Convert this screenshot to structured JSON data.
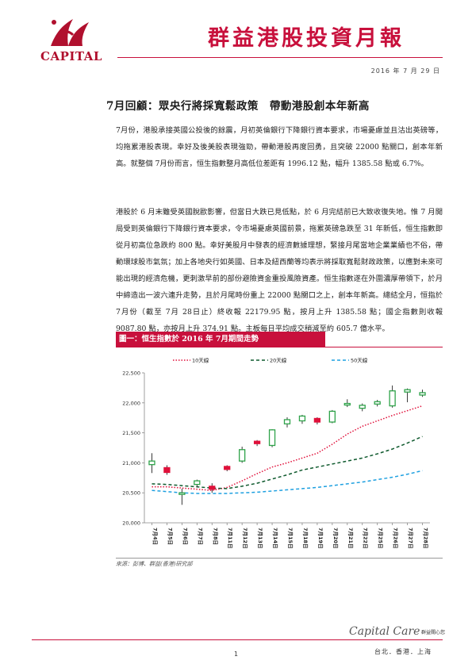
{
  "header": {
    "logo_text": "CAPITAL",
    "report_title": "群益港股投資月報",
    "date": "2016 年 7 月 29 日"
  },
  "article": {
    "headline": "7月回顧：眾央行將採寬鬆政策　帶動港股創本年新高",
    "paragraphs": [
      "7月份，港股承接英國公投後的餘震，月初英倫銀行下降銀行資本要求，市場憂慮並且沽出英磅等，均拖累港股表現。幸好及後美股表現強勁，帶動港股再度回勇，且突破 22000 點關口，創本年新高。就整個 7月份而言，恒生指數整月高低位差距有 1996.12 點，幅升 1385.58 點或 6.7%。",
      "港股於 6 月末雖受英國脫歐影響，但當日大跌已見低點，於 6 月完結前已大致收復失地。惟 7 月開局受到英倫銀行下降銀行資本要求，令市場憂慮英國前景，拖累英磅急跌至 31 年新低，恒生指數即從月初高位急跌約 800 點。幸好美股月中發表的經濟數據理想，緊接月尾當地企業業績也不俗，帶動環球股市氣氛；加上各地央行如英國、日本及紐西蘭等均表示將採取寬鬆財政政策，以應對未來可能出現的經濟危機，更刺激早前的部份避險資金重投風險資產。恒生指數遂在外圍濃厚帶領下，於月中締造出一波六連升走勢，且於月尾時份重上 22000 點關口之上，創本年新高。總結全月，恒指於 7月份（截至 7月 28日止）終收報 22179.95 點，按月上升 1385.58 點；國企指數則收報 9087.80 點，亦按月上升 374.91 點。主板每日平均成交稍減至約 605.7 億水平。"
    ]
  },
  "figure": {
    "title": "圖一：恒生指數於 2016 年 7月期間走勢",
    "source": "來源：彭博、群益(香港)研究部"
  },
  "chart_data": {
    "type": "candlestick",
    "title": "",
    "ylim": [
      20000,
      22500
    ],
    "yticks": [
      20000,
      20500,
      21000,
      21500,
      22000,
      22500
    ],
    "ytick_labels": [
      "20,000",
      "20,500",
      "21,000",
      "21,500",
      "22,000",
      "22,500"
    ],
    "categories": [
      "7月4日",
      "7月5日",
      "7月6日",
      "7月7日",
      "7月8日",
      "7月11日",
      "7月12日",
      "7月13日",
      "7月14日",
      "7月15日",
      "7月18日",
      "7月19日",
      "7月20日",
      "7月21日",
      "7月22日",
      "7月25日",
      "7月26日",
      "7月27日",
      "7月28日"
    ],
    "candles": [
      {
        "open": 20970,
        "high": 21160,
        "low": 20830,
        "close": 21030,
        "up": true
      },
      {
        "open": 20920,
        "high": 20960,
        "low": 20800,
        "close": 20840,
        "up": false
      },
      {
        "open": 20480,
        "high": 20570,
        "low": 20300,
        "close": 20500,
        "up": true
      },
      {
        "open": 20640,
        "high": 20720,
        "low": 20590,
        "close": 20700,
        "up": true
      },
      {
        "open": 20610,
        "high": 20660,
        "low": 20500,
        "close": 20560,
        "up": false
      },
      {
        "open": 20940,
        "high": 20960,
        "low": 20860,
        "close": 20890,
        "up": false
      },
      {
        "open": 21030,
        "high": 21270,
        "low": 21000,
        "close": 21220,
        "up": true
      },
      {
        "open": 21360,
        "high": 21380,
        "low": 21280,
        "close": 21320,
        "up": false
      },
      {
        "open": 21290,
        "high": 21560,
        "low": 21260,
        "close": 21550,
        "up": true
      },
      {
        "open": 21650,
        "high": 21760,
        "low": 21590,
        "close": 21720,
        "up": true
      },
      {
        "open": 21700,
        "high": 21800,
        "low": 21650,
        "close": 21780,
        "up": true
      },
      {
        "open": 21740,
        "high": 21760,
        "low": 21640,
        "close": 21680,
        "up": false
      },
      {
        "open": 21680,
        "high": 21880,
        "low": 21660,
        "close": 21860,
        "up": true
      },
      {
        "open": 21970,
        "high": 22060,
        "low": 21930,
        "close": 21990,
        "up": true
      },
      {
        "open": 21910,
        "high": 21990,
        "low": 21860,
        "close": 21960,
        "up": true
      },
      {
        "open": 21980,
        "high": 22050,
        "low": 21940,
        "close": 22020,
        "up": true
      },
      {
        "open": 21950,
        "high": 22290,
        "low": 21920,
        "close": 22200,
        "up": true
      },
      {
        "open": 22180,
        "high": 22240,
        "low": 22010,
        "close": 22220,
        "up": true
      },
      {
        "open": 22130,
        "high": 22220,
        "low": 22100,
        "close": 22170,
        "up": true
      }
    ],
    "series": [
      {
        "name": "10天線",
        "color": "#e0103a",
        "dash": "dot",
        "values": [
          20600,
          20600,
          20580,
          20560,
          20540,
          20590,
          20700,
          20820,
          20930,
          21000,
          21080,
          21160,
          21310,
          21480,
          21610,
          21700,
          21790,
          21870,
          21950
        ]
      },
      {
        "name": "20天線",
        "color": "#0f5a2e",
        "dash": "dash",
        "values": [
          20650,
          20640,
          20620,
          20600,
          20580,
          20570,
          20610,
          20660,
          20730,
          20800,
          20880,
          20930,
          20980,
          21030,
          21080,
          21150,
          21230,
          21330,
          21440
        ]
      },
      {
        "name": "50天線",
        "color": "#1ea0e0",
        "dash": "dash",
        "values": [
          20540,
          20520,
          20500,
          20490,
          20490,
          20490,
          20500,
          20510,
          20530,
          20550,
          20570,
          20590,
          20620,
          20650,
          20680,
          20720,
          20760,
          20810,
          20870
        ]
      }
    ],
    "up_color": "#2fa34a",
    "down_color": "#e0103a",
    "legend": "top"
  },
  "footer": {
    "page_number": "1",
    "brand": "Capital Care",
    "brand_sub": "群益關心您",
    "cities": "台北．香港．上海"
  },
  "colors": {
    "accent": "#c8103c"
  }
}
